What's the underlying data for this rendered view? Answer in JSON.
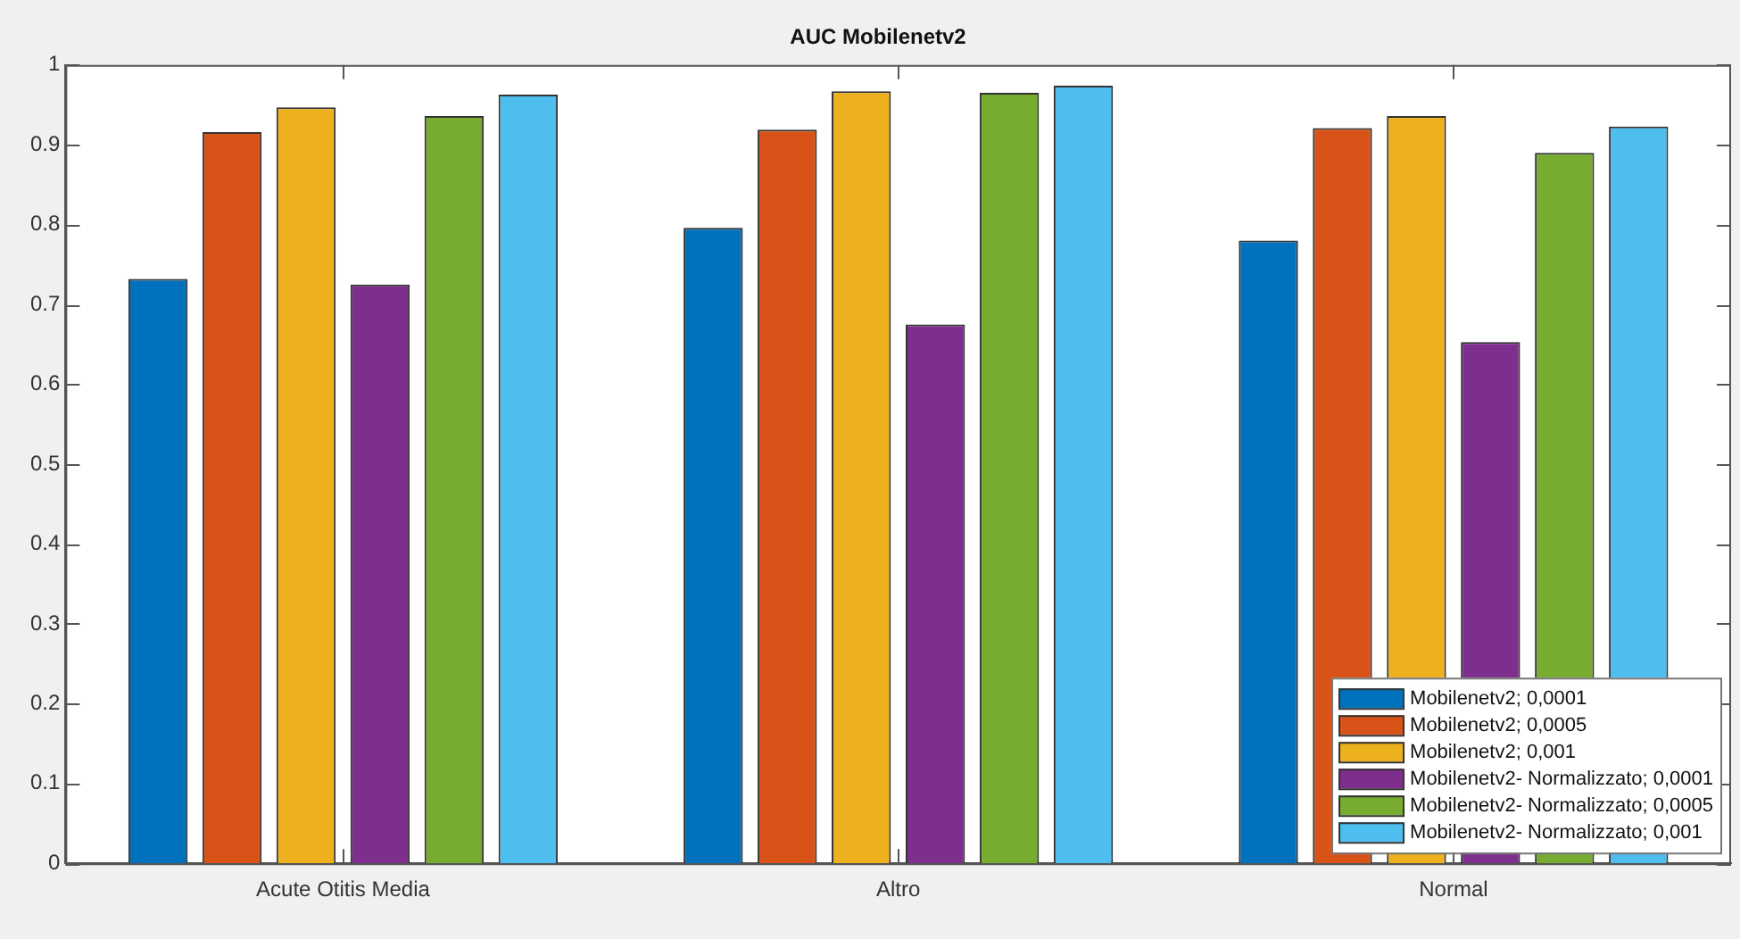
{
  "chart_data": {
    "type": "bar",
    "title": "AUC Mobilenetv2",
    "categories": [
      "Acute Otitis Media",
      "Altro",
      "Normal"
    ],
    "series": [
      {
        "name": "Mobilenetv2; 0,0001",
        "color": "#0072bd",
        "values": [
          0.732,
          0.796,
          0.78
        ]
      },
      {
        "name": "Mobilenetv2; 0,0005",
        "color": "#d95319",
        "values": [
          0.916,
          0.919,
          0.921
        ]
      },
      {
        "name": "Mobilenetv2; 0,001",
        "color": "#edb120",
        "values": [
          0.947,
          0.967,
          0.936
        ]
      },
      {
        "name": "Mobilenetv2- Normalizzato; 0,0001",
        "color": "#7e2f8e",
        "values": [
          0.725,
          0.675,
          0.653
        ]
      },
      {
        "name": "Mobilenetv2- Normalizzato; 0,0005",
        "color": "#77ac30",
        "values": [
          0.936,
          0.965,
          0.89
        ]
      },
      {
        "name": "Mobilenetv2- Normalizzato; 0,001",
        "color": "#4dbeee",
        "values": [
          0.963,
          0.974,
          0.923
        ]
      }
    ],
    "ylim": [
      0,
      1
    ],
    "yticks": [
      0,
      0.1,
      0.2,
      0.3,
      0.4,
      0.5,
      0.6,
      0.7,
      0.8,
      0.9,
      1
    ],
    "grid": false,
    "legend": "bottom right"
  }
}
